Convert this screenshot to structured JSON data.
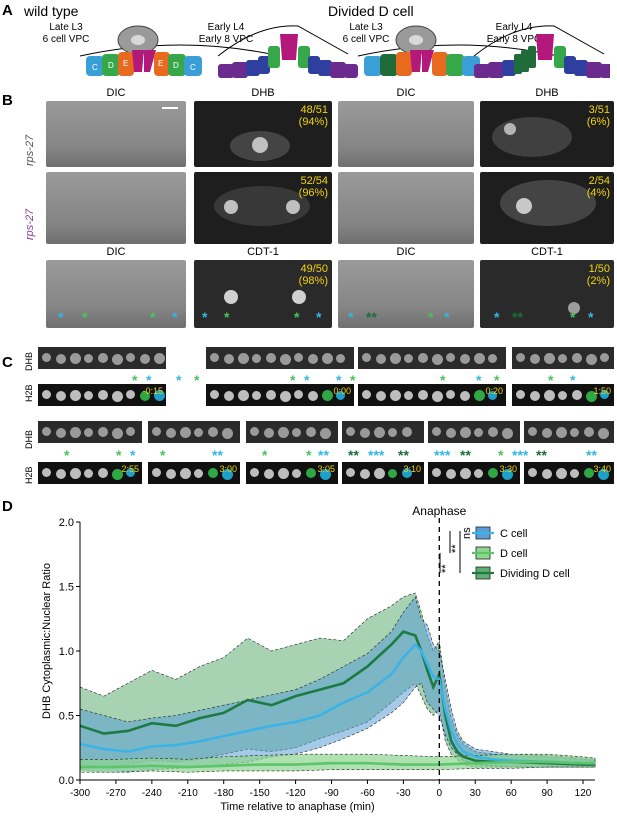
{
  "panel_labels": {
    "a": "A",
    "b": "B",
    "c": "C",
    "d": "D"
  },
  "section_a": {
    "wild_type_title": "wild type",
    "divided_title": "Divided D cell",
    "stage1": "Late L3",
    "stage1b": "6 cell VPC",
    "stage2": "Early L4",
    "stage2b": "Early 8 VPC",
    "colors": {
      "C": "#3a9fd6",
      "D": "#37a84a",
      "E": "#e86a1e",
      "F": "#b2197a",
      "A": "#6b2a8e",
      "B": "#2f3f9e",
      "anchor": "#9a9a9a"
    }
  },
  "section_b": {
    "col_dic": "DIC",
    "col_dhb": "DHB",
    "col_cdt": "CDT-1",
    "row1_label": "rps-27",
    "row2_label": "rps-27",
    "pct_r1c2": "48/51",
    "pct_r1c2b": "(94%)",
    "pct_r1c4": "3/51",
    "pct_r1c4b": "(6%)",
    "pct_r2c2": "52/54",
    "pct_r2c2b": "(96%)",
    "pct_r2c4": "2/54",
    "pct_r2c4b": "(4%)",
    "pct_r3c2": "49/50",
    "pct_r3c2b": "(98%)",
    "pct_r3c4": "1/50",
    "pct_r3c4b": "(2%)"
  },
  "section_c": {
    "dhb": "DHB",
    "h2b": "H2B",
    "times_top": [
      "-0:15",
      "0:00",
      "0:20",
      "1:50"
    ],
    "times_bottom": [
      "2:55",
      "3:00",
      "3:05",
      "3:10",
      "3:30",
      "3:40"
    ]
  },
  "chart_data": {
    "type": "line",
    "xlabel": "Time relative to anaphase (min)",
    "ylabel": "DHB Cytoplasmic:Nuclear Ratio",
    "xlim": [
      -300,
      130
    ],
    "ylim": [
      0,
      2.0
    ],
    "xticks": [
      -300,
      -270,
      -240,
      -210,
      -180,
      -150,
      -120,
      -90,
      -60,
      -30,
      0,
      30,
      60,
      90,
      120
    ],
    "yticks": [
      "0.0",
      "0.5",
      "1.0",
      "1.5",
      "2.0"
    ],
    "annotation": "Anaphase",
    "sig_labels": [
      "ns",
      "**",
      "**"
    ],
    "legend_position": "top-right",
    "colors": {
      "c_cell": "#3cb3e6",
      "c_fill": "#5a9ed6",
      "d_cell": "#5cc56a",
      "d_fill": "#8fd690",
      "dd_cell": "#1d7a43",
      "dd_fill": "#5fae73"
    },
    "series": [
      {
        "name": "C cell",
        "x": [
          -300,
          -280,
          -260,
          -240,
          -220,
          -200,
          -180,
          -160,
          -140,
          -120,
          -100,
          -80,
          -60,
          -40,
          -30,
          -20,
          -15,
          -10,
          -5,
          0,
          5,
          10,
          15,
          20,
          30,
          45,
          60,
          90,
          120,
          130
        ],
        "y": [
          0.28,
          0.24,
          0.22,
          0.26,
          0.27,
          0.3,
          0.34,
          0.38,
          0.42,
          0.45,
          0.5,
          0.6,
          0.68,
          0.82,
          0.95,
          1.05,
          1.0,
          0.9,
          0.8,
          0.78,
          0.55,
          0.38,
          0.28,
          0.22,
          0.18,
          0.16,
          0.15,
          0.14,
          0.13,
          0.13
        ],
        "lower": [
          0.08,
          0.06,
          0.06,
          0.08,
          0.09,
          0.1,
          0.12,
          0.14,
          0.18,
          0.2,
          0.25,
          0.32,
          0.4,
          0.52,
          0.6,
          0.72,
          0.75,
          0.6,
          0.55,
          0.5,
          0.35,
          0.25,
          0.2,
          0.15,
          0.12,
          0.11,
          0.1,
          0.1,
          0.1,
          0.1
        ],
        "upper": [
          0.55,
          0.5,
          0.45,
          0.48,
          0.5,
          0.54,
          0.58,
          0.62,
          0.66,
          0.7,
          0.78,
          0.88,
          0.98,
          1.15,
          1.3,
          1.42,
          1.25,
          1.2,
          1.05,
          1.0,
          0.78,
          0.55,
          0.38,
          0.3,
          0.24,
          0.22,
          0.2,
          0.19,
          0.17,
          0.16
        ]
      },
      {
        "name": "D cell",
        "x": [
          -300,
          -270,
          -240,
          -210,
          -180,
          -150,
          -120,
          -90,
          -60,
          -30,
          0,
          30,
          60,
          90,
          120,
          130
        ],
        "y": [
          0.1,
          0.1,
          0.11,
          0.1,
          0.11,
          0.12,
          0.12,
          0.13,
          0.13,
          0.12,
          0.12,
          0.13,
          0.14,
          0.14,
          0.13,
          0.13
        ],
        "lower": [
          0.06,
          0.06,
          0.07,
          0.06,
          0.07,
          0.07,
          0.07,
          0.08,
          0.08,
          0.08,
          0.08,
          0.09,
          0.09,
          0.1,
          0.1,
          0.1
        ],
        "upper": [
          0.16,
          0.16,
          0.17,
          0.16,
          0.18,
          0.19,
          0.2,
          0.2,
          0.2,
          0.19,
          0.18,
          0.19,
          0.2,
          0.2,
          0.18,
          0.17
        ]
      },
      {
        "name": "Dividing D cell",
        "x": [
          -300,
          -280,
          -260,
          -240,
          -220,
          -200,
          -180,
          -160,
          -140,
          -120,
          -100,
          -80,
          -60,
          -40,
          -30,
          -20,
          -15,
          -10,
          -5,
          0,
          5,
          10,
          15,
          20,
          30,
          45,
          60,
          90,
          120,
          130
        ],
        "y": [
          0.42,
          0.36,
          0.38,
          0.44,
          0.42,
          0.48,
          0.52,
          0.62,
          0.58,
          0.65,
          0.7,
          0.75,
          0.88,
          1.05,
          1.15,
          1.12,
          1.0,
          0.85,
          0.72,
          0.82,
          0.5,
          0.3,
          0.22,
          0.18,
          0.15,
          0.14,
          0.14,
          0.13,
          0.12,
          0.12
        ],
        "lower": [
          0.12,
          0.1,
          0.12,
          0.15,
          0.14,
          0.16,
          0.2,
          0.24,
          0.22,
          0.25,
          0.32,
          0.38,
          0.45,
          0.6,
          0.68,
          0.75,
          0.65,
          0.55,
          0.5,
          0.55,
          0.3,
          0.2,
          0.16,
          0.12,
          0.1,
          0.1,
          0.1,
          0.1,
          0.1,
          0.1
        ],
        "upper": [
          0.72,
          0.65,
          0.75,
          0.85,
          0.78,
          0.88,
          0.95,
          1.1,
          1.0,
          1.05,
          1.1,
          1.08,
          1.25,
          1.35,
          1.42,
          1.45,
          1.3,
          1.12,
          1.0,
          1.08,
          0.72,
          0.48,
          0.35,
          0.28,
          0.22,
          0.2,
          0.19,
          0.18,
          0.16,
          0.15
        ]
      }
    ]
  }
}
